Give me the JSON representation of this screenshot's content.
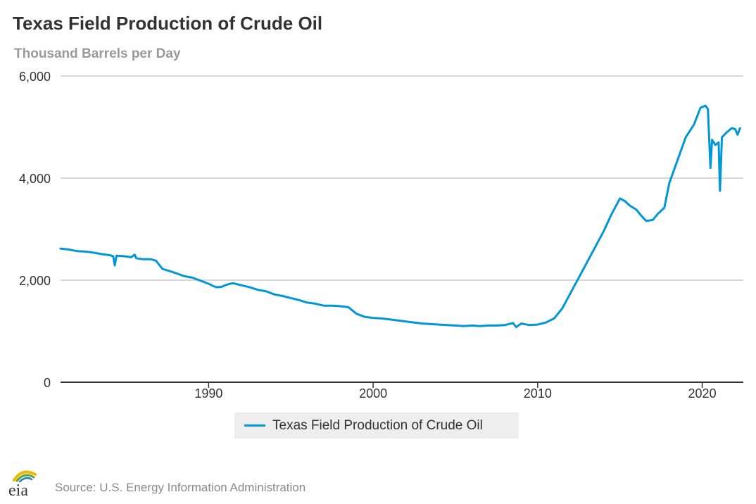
{
  "chart_data": {
    "type": "line",
    "title": "Texas Field Production of Crude Oil",
    "subtitle": "Thousand Barrels per Day",
    "xlabel": "",
    "ylabel": "",
    "xlim": [
      1981,
      2022.5
    ],
    "ylim": [
      0,
      6000
    ],
    "grid": true,
    "legend_placement": "bottom-center",
    "y_ticks": [
      0,
      2000,
      4000,
      6000
    ],
    "y_tick_labels": [
      "0",
      "2,000",
      "4,000",
      "6,000"
    ],
    "x_ticks": [
      1990,
      2000,
      2010,
      2020
    ],
    "x_tick_labels": [
      "1990",
      "2000",
      "2010",
      "2020"
    ],
    "series": [
      {
        "name": "Texas Field Production of Crude Oil",
        "color": "#0096d7",
        "points": [
          [
            1981.0,
            2620
          ],
          [
            1981.5,
            2600
          ],
          [
            1982.0,
            2570
          ],
          [
            1982.5,
            2560
          ],
          [
            1983.0,
            2540
          ],
          [
            1983.5,
            2510
          ],
          [
            1984.0,
            2490
          ],
          [
            1984.2,
            2470
          ],
          [
            1984.3,
            2290
          ],
          [
            1984.4,
            2480
          ],
          [
            1984.8,
            2470
          ],
          [
            1985.3,
            2450
          ],
          [
            1985.5,
            2500
          ],
          [
            1985.6,
            2430
          ],
          [
            1986.0,
            2410
          ],
          [
            1986.5,
            2410
          ],
          [
            1986.8,
            2380
          ],
          [
            1987.2,
            2220
          ],
          [
            1987.6,
            2180
          ],
          [
            1988.0,
            2140
          ],
          [
            1988.5,
            2080
          ],
          [
            1989.0,
            2050
          ],
          [
            1989.5,
            1990
          ],
          [
            1990.0,
            1930
          ],
          [
            1990.3,
            1880
          ],
          [
            1990.5,
            1860
          ],
          [
            1990.8,
            1870
          ],
          [
            1991.0,
            1900
          ],
          [
            1991.3,
            1930
          ],
          [
            1991.5,
            1940
          ],
          [
            1992.0,
            1900
          ],
          [
            1992.5,
            1860
          ],
          [
            1993.0,
            1810
          ],
          [
            1993.5,
            1780
          ],
          [
            1994.0,
            1720
          ],
          [
            1994.5,
            1690
          ],
          [
            1995.0,
            1650
          ],
          [
            1995.5,
            1610
          ],
          [
            1996.0,
            1560
          ],
          [
            1996.5,
            1540
          ],
          [
            1997.0,
            1500
          ],
          [
            1997.5,
            1500
          ],
          [
            1998.0,
            1490
          ],
          [
            1998.5,
            1470
          ],
          [
            1999.0,
            1340
          ],
          [
            1999.5,
            1280
          ],
          [
            2000.0,
            1260
          ],
          [
            2000.5,
            1250
          ],
          [
            2001.0,
            1230
          ],
          [
            2001.5,
            1210
          ],
          [
            2002.0,
            1190
          ],
          [
            2002.5,
            1170
          ],
          [
            2003.0,
            1150
          ],
          [
            2003.5,
            1140
          ],
          [
            2004.0,
            1130
          ],
          [
            2004.5,
            1120
          ],
          [
            2005.0,
            1110
          ],
          [
            2005.5,
            1100
          ],
          [
            2006.0,
            1110
          ],
          [
            2006.5,
            1100
          ],
          [
            2007.0,
            1110
          ],
          [
            2007.5,
            1110
          ],
          [
            2008.0,
            1120
          ],
          [
            2008.5,
            1160
          ],
          [
            2008.7,
            1080
          ],
          [
            2009.0,
            1150
          ],
          [
            2009.5,
            1120
          ],
          [
            2010.0,
            1130
          ],
          [
            2010.5,
            1170
          ],
          [
            2011.0,
            1250
          ],
          [
            2011.5,
            1450
          ],
          [
            2012.0,
            1750
          ],
          [
            2012.5,
            2050
          ],
          [
            2013.0,
            2350
          ],
          [
            2013.5,
            2650
          ],
          [
            2014.0,
            2950
          ],
          [
            2014.5,
            3300
          ],
          [
            2015.0,
            3600
          ],
          [
            2015.3,
            3550
          ],
          [
            2015.6,
            3460
          ],
          [
            2016.0,
            3380
          ],
          [
            2016.3,
            3260
          ],
          [
            2016.6,
            3160
          ],
          [
            2017.0,
            3180
          ],
          [
            2017.3,
            3300
          ],
          [
            2017.7,
            3420
          ],
          [
            2018.0,
            3900
          ],
          [
            2018.5,
            4350
          ],
          [
            2019.0,
            4800
          ],
          [
            2019.5,
            5050
          ],
          [
            2019.9,
            5380
          ],
          [
            2020.2,
            5420
          ],
          [
            2020.35,
            5350
          ],
          [
            2020.5,
            4200
          ],
          [
            2020.6,
            4750
          ],
          [
            2020.8,
            4650
          ],
          [
            2021.0,
            4700
          ],
          [
            2021.08,
            3750
          ],
          [
            2021.2,
            4800
          ],
          [
            2021.5,
            4900
          ],
          [
            2021.8,
            4980
          ],
          [
            2022.0,
            4960
          ],
          [
            2022.15,
            4850
          ],
          [
            2022.3,
            4980
          ]
        ]
      }
    ],
    "source": "Source: U.S. Energy Information Administration"
  },
  "logo_text": "eia"
}
